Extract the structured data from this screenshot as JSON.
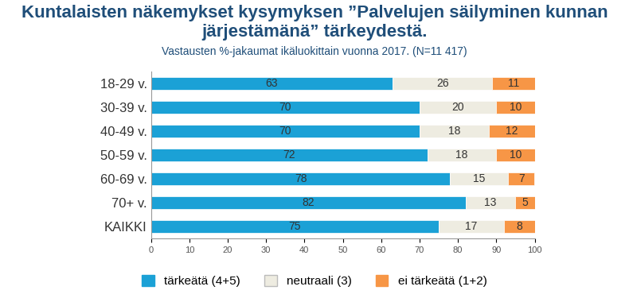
{
  "chart_data": {
    "type": "bar",
    "title": "Kuntalaisten näkemykset kysymyksen ”Palvelujen säilyminen kunnan järjestämänä” tärkeydestä.",
    "subtitle": "Vastausten %-jakaumat ikäluokittain vuonna 2017. (N=11 417)",
    "orientation": "horizontal",
    "stacked": true,
    "data_labels": true,
    "legend": "lower center",
    "categories": [
      "18-29 v.",
      "30-39 v.",
      "40-49 v.",
      "50-59 v.",
      "60-69 v.",
      "70+ v.",
      "KAIKKI"
    ],
    "series": [
      {
        "name": "tärkeätä (4+5)",
        "color": "#1ba1d6",
        "values": [
          63,
          70,
          70,
          72,
          78,
          82,
          75
        ]
      },
      {
        "name": "neutraali (3)",
        "color": "#eeece1",
        "values": [
          26,
          20,
          18,
          18,
          15,
          13,
          17
        ]
      },
      {
        "name": "ei tärkeätä (1+2)",
        "color": "#f79646",
        "values": [
          11,
          10,
          12,
          10,
          7,
          5,
          8
        ]
      }
    ],
    "xlim": [
      0,
      100
    ],
    "xticks": [
      0,
      10,
      20,
      30,
      40,
      50,
      60,
      70,
      80,
      90,
      100
    ]
  }
}
